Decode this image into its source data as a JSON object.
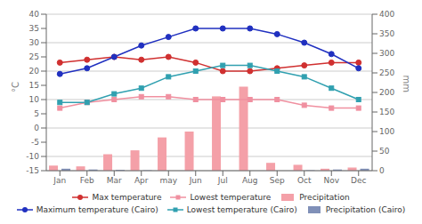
{
  "chart_data": {
    "type": "combo",
    "categories": [
      "Jan",
      "Feb",
      "Mar",
      "Apr",
      "may",
      "Jun",
      "Jul",
      "Aug",
      "Sep",
      "Oct",
      "Nov",
      "Dec"
    ],
    "y_label": "°C",
    "y2_label": "mm",
    "ylim": [
      -15,
      40
    ],
    "yticks": [
      -15,
      -10,
      -5,
      0,
      5,
      10,
      15,
      20,
      25,
      30,
      35,
      40
    ],
    "y2lim": [
      0,
      400
    ],
    "y2ticks": [
      0,
      50,
      100,
      150,
      200,
      250,
      300,
      350,
      400
    ],
    "grid": true,
    "legend": "bottom",
    "series": [
      {
        "name": "Max temperature",
        "type": "line",
        "color": "#d03030",
        "marker": "circle",
        "values": [
          23,
          24,
          25,
          24,
          25,
          23,
          20,
          20,
          21,
          22,
          23,
          23
        ]
      },
      {
        "name": "Lowest temperature",
        "type": "line",
        "color": "#f090a0",
        "marker": "square",
        "values": [
          7,
          9,
          10,
          11,
          11,
          10,
          10,
          10,
          10,
          8,
          7,
          7
        ]
      },
      {
        "name": "Precipitation",
        "type": "bar",
        "axis": "y2",
        "color": "#f4a0a8",
        "values": [
          13,
          11,
          42,
          52,
          85,
          100,
          190,
          215,
          20,
          15,
          5,
          8
        ]
      },
      {
        "name": "Maximum temperature (Cairo)",
        "type": "line",
        "color": "#2030c0",
        "marker": "circle",
        "values": [
          19,
          21,
          25,
          29,
          32,
          35,
          35,
          35,
          33,
          30,
          26,
          21
        ]
      },
      {
        "name": "Lowest temperature (Cairo)",
        "type": "line",
        "color": "#30a0b0",
        "marker": "square",
        "values": [
          9,
          9,
          12,
          14,
          18,
          20,
          22,
          22,
          20,
          18,
          14,
          10
        ]
      },
      {
        "name": "Precipitation (Cairo)",
        "type": "bar",
        "axis": "y2",
        "color": "#8090b8",
        "values": [
          5,
          3,
          2,
          1,
          0,
          0,
          0,
          0,
          0,
          1,
          3,
          5
        ]
      }
    ]
  }
}
